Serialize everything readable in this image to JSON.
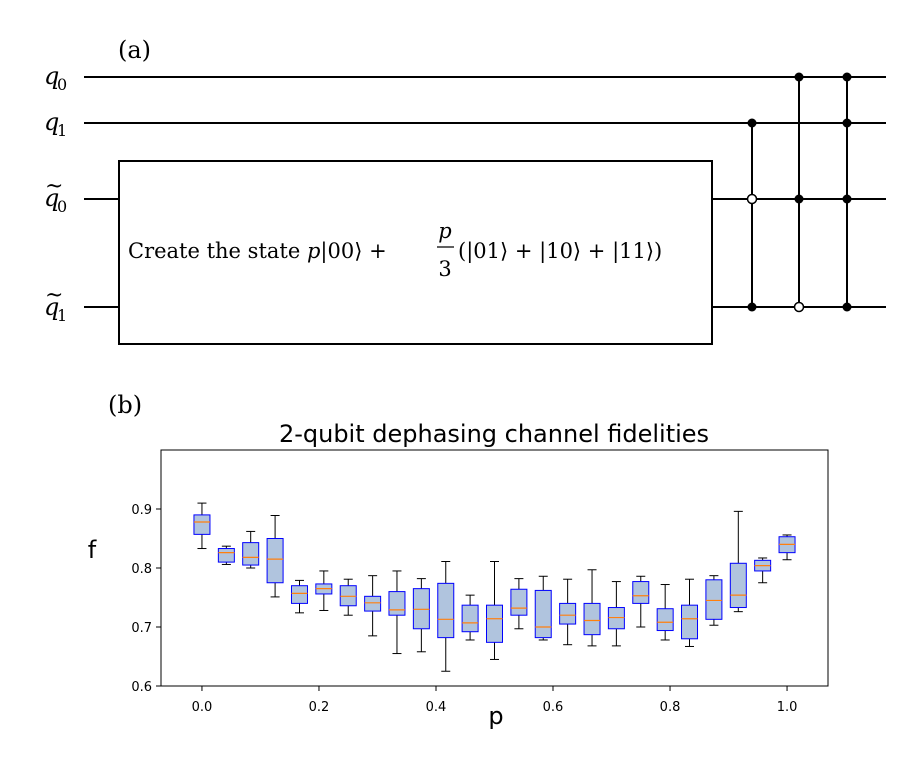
{
  "circuit": {
    "panel_label": "(a)",
    "qubits": [
      {
        "base": "q",
        "sub": "0",
        "tilde": false
      },
      {
        "base": "q",
        "sub": "1",
        "tilde": false
      },
      {
        "base": "q",
        "sub": "0",
        "tilde": true
      },
      {
        "base": "q",
        "sub": "1",
        "tilde": true
      }
    ],
    "box": {
      "text_prefix": "Create the state ",
      "p": "p",
      "ket00": "|00⟩ +",
      "frac_num": "p",
      "frac_den": "3",
      "rest": "(|01⟩ + |10⟩ + |11⟩)"
    },
    "gates": [
      {
        "controls": [
          {
            "wire": 1,
            "filled": true
          },
          {
            "wire": 2,
            "filled": false
          },
          {
            "wire": 3,
            "filled": true
          }
        ]
      },
      {
        "controls": [
          {
            "wire": 0,
            "filled": true
          },
          {
            "wire": 2,
            "filled": true
          },
          {
            "wire": 3,
            "filled": false
          }
        ]
      },
      {
        "controls": [
          {
            "wire": 0,
            "filled": true
          },
          {
            "wire": 1,
            "filled": true
          },
          {
            "wire": 2,
            "filled": true
          },
          {
            "wire": 3,
            "filled": true
          }
        ]
      }
    ]
  },
  "chart_panel_label": "(b)",
  "chart_data": {
    "type": "box",
    "title": "2-qubit dephasing channel fidelities",
    "xlabel": "p",
    "ylabel": "f",
    "xlim": [
      -0.07,
      1.07
    ],
    "ylim": [
      0.6,
      1.0
    ],
    "xticks": [
      "0.0",
      "0.2",
      "0.4",
      "0.6",
      "0.8",
      "1.0"
    ],
    "yticks": [
      "0.6",
      "0.7",
      "0.8",
      "0.9"
    ],
    "grid": false,
    "colors": {
      "box_fill": "#b0c4de",
      "box_edge": "#0000ff",
      "median": "#ff7f0e",
      "whisker": "#000000"
    },
    "boxes": [
      {
        "p": 0.0,
        "whislo": 0.833,
        "q1": 0.857,
        "med": 0.878,
        "q3": 0.89,
        "whishi": 0.91
      },
      {
        "p": 0.0417,
        "whislo": 0.806,
        "q1": 0.81,
        "med": 0.826,
        "q3": 0.833,
        "whishi": 0.837
      },
      {
        "p": 0.0833,
        "whislo": 0.8,
        "q1": 0.805,
        "med": 0.818,
        "q3": 0.843,
        "whishi": 0.862
      },
      {
        "p": 0.125,
        "whislo": 0.751,
        "q1": 0.775,
        "med": 0.815,
        "q3": 0.85,
        "whishi": 0.889
      },
      {
        "p": 0.1667,
        "whislo": 0.724,
        "q1": 0.74,
        "med": 0.757,
        "q3": 0.77,
        "whishi": 0.779
      },
      {
        "p": 0.2083,
        "whislo": 0.728,
        "q1": 0.756,
        "med": 0.765,
        "q3": 0.773,
        "whishi": 0.795
      },
      {
        "p": 0.25,
        "whislo": 0.72,
        "q1": 0.736,
        "med": 0.752,
        "q3": 0.77,
        "whishi": 0.781
      },
      {
        "p": 0.2917,
        "whislo": 0.685,
        "q1": 0.727,
        "med": 0.741,
        "q3": 0.752,
        "whishi": 0.787
      },
      {
        "p": 0.3333,
        "whislo": 0.655,
        "q1": 0.72,
        "med": 0.729,
        "q3": 0.76,
        "whishi": 0.795
      },
      {
        "p": 0.375,
        "whislo": 0.658,
        "q1": 0.697,
        "med": 0.73,
        "q3": 0.765,
        "whishi": 0.782
      },
      {
        "p": 0.4167,
        "whislo": 0.625,
        "q1": 0.682,
        "med": 0.713,
        "q3": 0.774,
        "whishi": 0.811
      },
      {
        "p": 0.4583,
        "whislo": 0.678,
        "q1": 0.692,
        "med": 0.707,
        "q3": 0.737,
        "whishi": 0.754
      },
      {
        "p": 0.5,
        "whislo": 0.645,
        "q1": 0.674,
        "med": 0.714,
        "q3": 0.737,
        "whishi": 0.811
      },
      {
        "p": 0.5417,
        "whislo": 0.697,
        "q1": 0.72,
        "med": 0.732,
        "q3": 0.764,
        "whishi": 0.782
      },
      {
        "p": 0.5833,
        "whislo": 0.678,
        "q1": 0.682,
        "med": 0.7,
        "q3": 0.762,
        "whishi": 0.786
      },
      {
        "p": 0.625,
        "whislo": 0.67,
        "q1": 0.705,
        "med": 0.72,
        "q3": 0.74,
        "whishi": 0.781
      },
      {
        "p": 0.6667,
        "whislo": 0.668,
        "q1": 0.687,
        "med": 0.711,
        "q3": 0.74,
        "whishi": 0.797
      },
      {
        "p": 0.7083,
        "whislo": 0.668,
        "q1": 0.697,
        "med": 0.716,
        "q3": 0.733,
        "whishi": 0.777
      },
      {
        "p": 0.75,
        "whislo": 0.7,
        "q1": 0.74,
        "med": 0.753,
        "q3": 0.777,
        "whishi": 0.786
      },
      {
        "p": 0.7917,
        "whislo": 0.678,
        "q1": 0.694,
        "med": 0.708,
        "q3": 0.731,
        "whishi": 0.772
      },
      {
        "p": 0.8333,
        "whislo": 0.667,
        "q1": 0.68,
        "med": 0.714,
        "q3": 0.737,
        "whishi": 0.781
      },
      {
        "p": 0.875,
        "whislo": 0.703,
        "q1": 0.713,
        "med": 0.745,
        "q3": 0.78,
        "whishi": 0.787
      },
      {
        "p": 0.9167,
        "whislo": 0.726,
        "q1": 0.733,
        "med": 0.754,
        "q3": 0.808,
        "whishi": 0.896
      },
      {
        "p": 0.9583,
        "whislo": 0.775,
        "q1": 0.795,
        "med": 0.804,
        "q3": 0.813,
        "whishi": 0.817
      },
      {
        "p": 1.0,
        "whislo": 0.814,
        "q1": 0.826,
        "med": 0.84,
        "q3": 0.853,
        "whishi": 0.856
      }
    ]
  }
}
